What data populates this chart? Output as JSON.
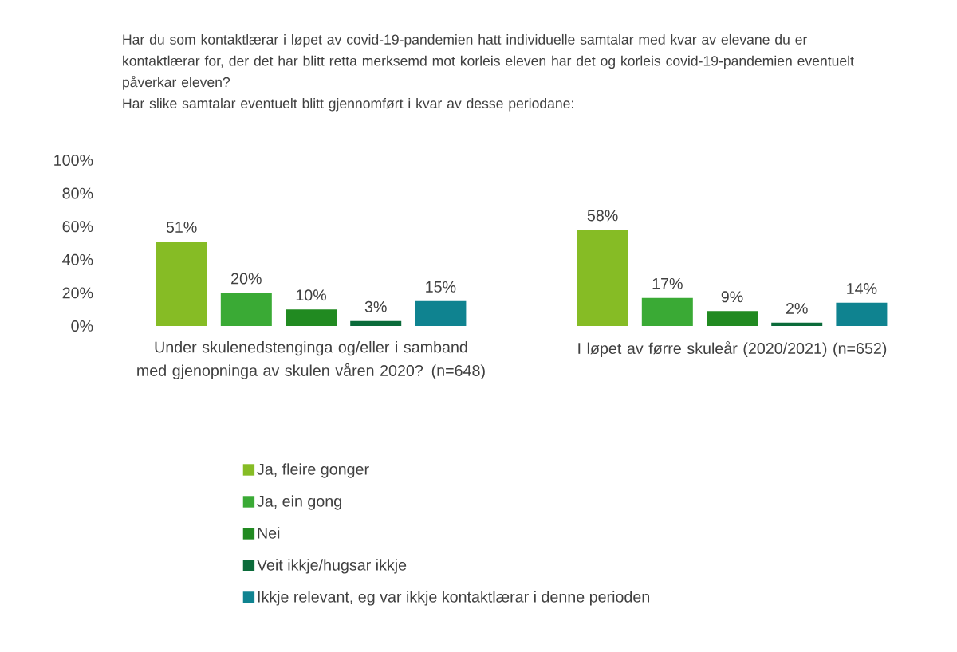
{
  "chart_data": {
    "type": "bar",
    "title": "Har du som kontaktlærar i løpet av covid-19-pandemien hatt individuelle samtalar med kvar av elevane du er kontaktlærar for, der det har blitt retta merksemd mot korleis eleven har det og korleis covid-19-pandemien eventuelt påverkar eleven?",
    "subtitle": "Har slike samtalar eventuelt blitt gjennomført i kvar av desse periodane:",
    "categories": [
      "Under skulenedstenginga og/eller i samband med gjenopninga av skulen våren 2020? (n=648)",
      "I løpet av førre skuleår (2020/2021) (n=652)"
    ],
    "series": [
      {
        "name": "Ja, fleire gonger",
        "color": "#86bc25",
        "values": [
          51,
          58
        ],
        "value_labels": [
          "51%",
          "58%"
        ]
      },
      {
        "name": "Ja, ein gong",
        "color": "#3aaa35",
        "values": [
          20,
          17
        ],
        "value_labels": [
          "20%",
          "17%"
        ]
      },
      {
        "name": "Nei",
        "color": "#218a21",
        "values": [
          10,
          9
        ],
        "value_labels": [
          "10%",
          "9%"
        ]
      },
      {
        "name": "Veit ikkje/hugsar ikkje",
        "color": "#0b6b3a",
        "values": [
          3,
          2
        ],
        "value_labels": [
          "3%",
          "2%"
        ]
      },
      {
        "name": "Ikkje relevant, eg var ikkje kontaktlærar i denne perioden",
        "color": "#0f8390",
        "values": [
          15,
          14
        ],
        "value_labels": [
          "15%",
          "14%"
        ]
      }
    ],
    "ylim": [
      0,
      100
    ],
    "yticks": [
      {
        "value": 0,
        "label": "0%"
      },
      {
        "value": 20,
        "label": "20%"
      },
      {
        "value": 40,
        "label": "40%"
      },
      {
        "value": 60,
        "label": "60%"
      },
      {
        "value": 80,
        "label": "80%"
      },
      {
        "value": 100,
        "label": "100%"
      }
    ],
    "grid": false,
    "legend": "bottom"
  }
}
